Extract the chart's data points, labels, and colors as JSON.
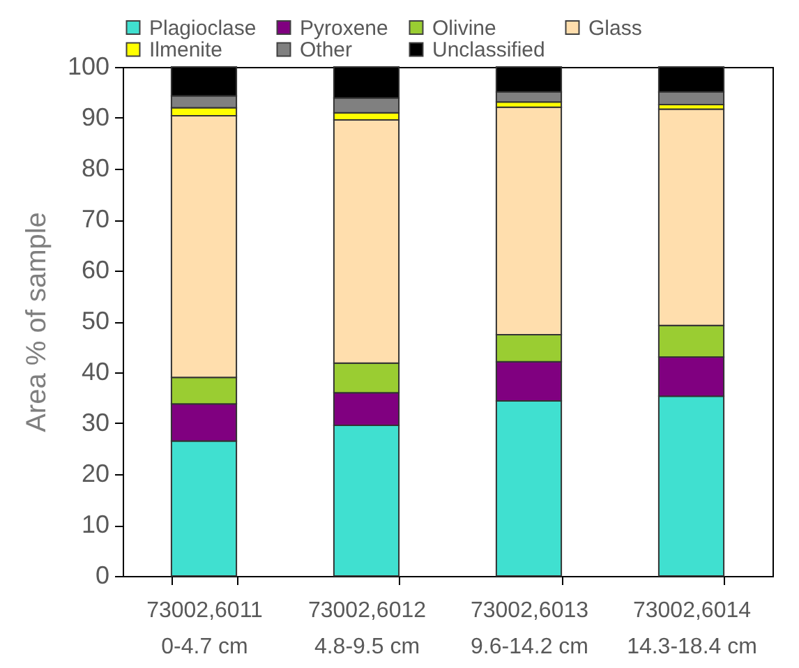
{
  "chart_data": {
    "type": "bar",
    "stacked": true,
    "ylabel": "Area % of sample",
    "categories": [
      "73002,6011\n0-4.7 cm",
      "73002,6012\n4.8-9.5 cm",
      "73002,6013\n9.6-14.2 cm",
      "73002,6014\n14.3-18.4 cm"
    ],
    "ylim": [
      0,
      100
    ],
    "yticks": [
      0,
      10,
      20,
      30,
      40,
      50,
      60,
      70,
      80,
      90,
      100
    ],
    "grid": false,
    "legend": "top",
    "series": [
      {
        "name": "Plagioclase",
        "color": "#40e0d0",
        "values": [
          26.5,
          29.6,
          34.4,
          35.3
        ]
      },
      {
        "name": "Pyroxene",
        "color": "#800080",
        "values": [
          7.3,
          6.4,
          7.7,
          7.7
        ]
      },
      {
        "name": "Olivine",
        "color": "#9acd32",
        "values": [
          5.2,
          5.8,
          5.3,
          6.2
        ]
      },
      {
        "name": "Glass",
        "color": "#ffdead",
        "values": [
          51.4,
          47.8,
          44.7,
          42.5
        ]
      },
      {
        "name": "Ilmenite",
        "color": "#ffff00",
        "values": [
          1.6,
          1.4,
          1.0,
          0.9
        ]
      },
      {
        "name": "Other",
        "color": "#808080",
        "values": [
          2.3,
          2.9,
          2.0,
          2.5
        ]
      },
      {
        "name": "Unclassified",
        "color": "#000000",
        "values": [
          5.7,
          6.1,
          4.9,
          4.9
        ]
      }
    ]
  }
}
